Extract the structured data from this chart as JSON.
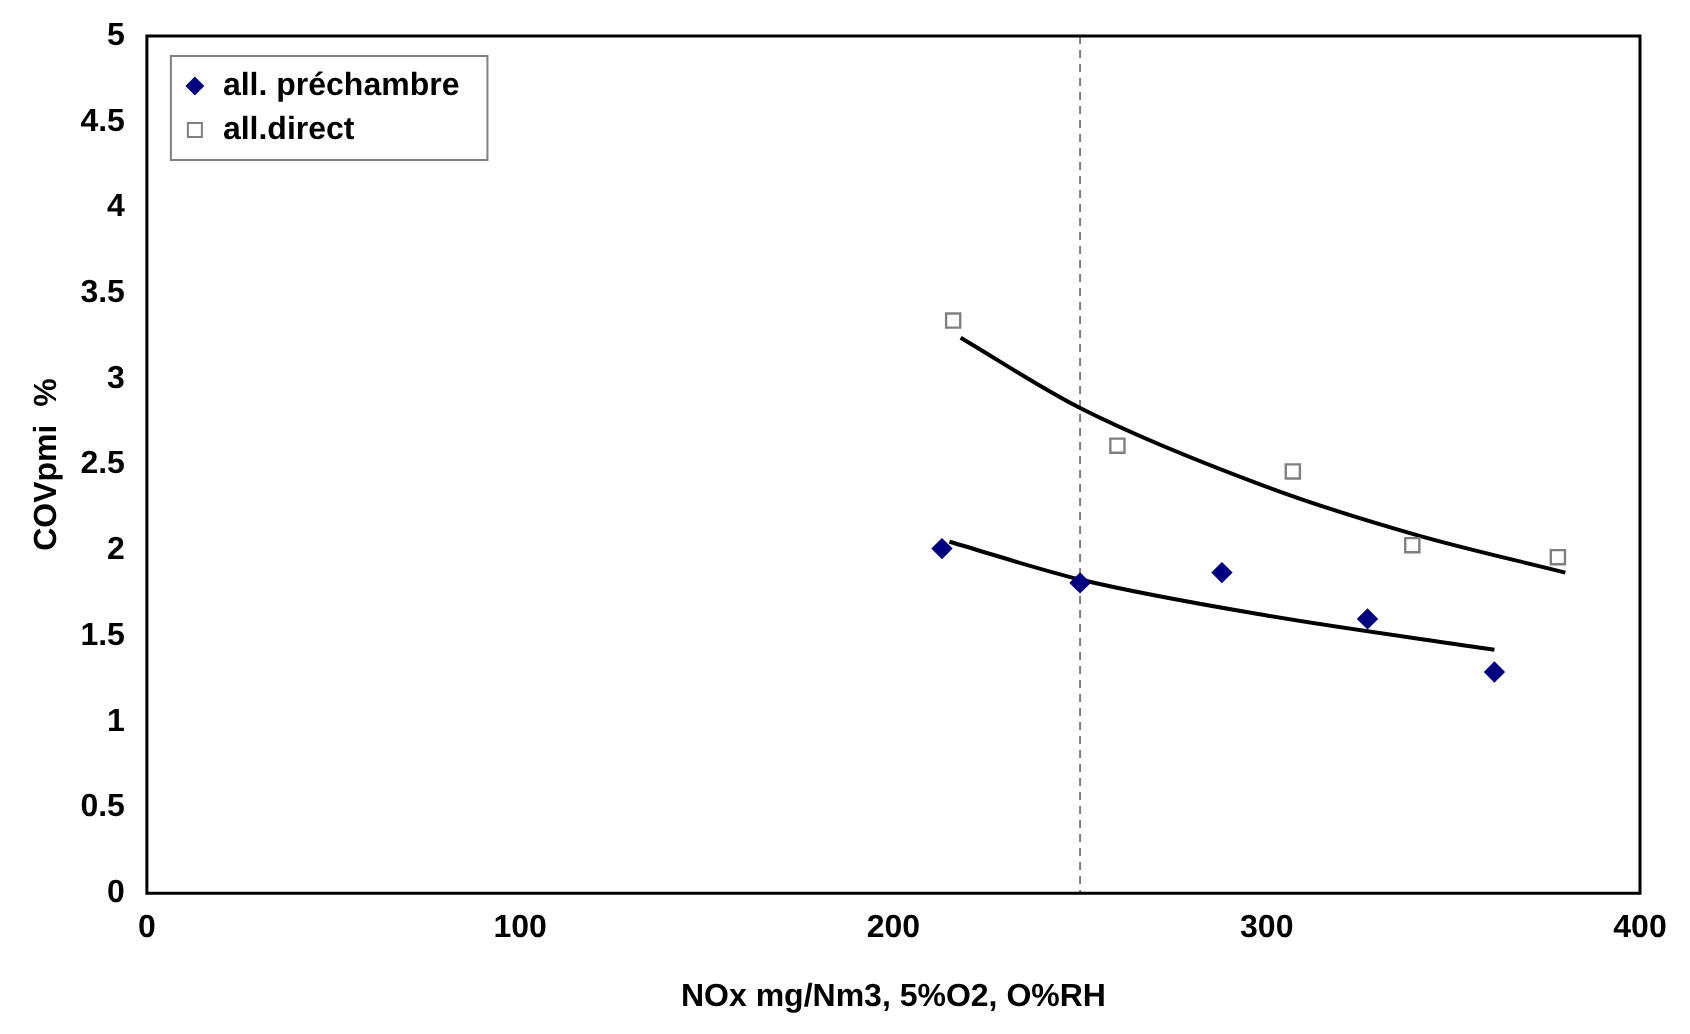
{
  "chart_data": {
    "type": "scatter",
    "xlabel": "NOx mg/Nm3, 5%O2, O%RH",
    "ylabel": "COVpmi  %",
    "xlim": [
      0,
      400
    ],
    "xticks": [
      0,
      100,
      200,
      300,
      400
    ],
    "ylim": [
      0,
      5
    ],
    "yticks": [
      0,
      0.5,
      1,
      1.5,
      2,
      2.5,
      3,
      3.5,
      4,
      4.5,
      5
    ],
    "grid": false,
    "legend": "top left",
    "series": [
      {
        "name": "all. préchambre",
        "color": "#000080",
        "marker": "diamond",
        "x": [
          213,
          250,
          288,
          327,
          361
        ],
        "values": [
          2.01,
          1.81,
          1.87,
          1.6,
          1.29
        ]
      },
      {
        "name": "all.direct",
        "color": "#808080",
        "marker": "square",
        "x": [
          216,
          260,
          307,
          339,
          378
        ],
        "values": [
          3.34,
          2.61,
          2.46,
          2.03,
          1.96
        ]
      },
      {
        "type": "line",
        "color": "#000000",
        "marker": "none",
        "x": [
          215,
          250,
          300,
          361
        ],
        "values": [
          2.05,
          1.83,
          1.62,
          1.42
        ]
      },
      {
        "type": "line",
        "color": "#000000",
        "marker": "none",
        "x": [
          218,
          250,
          300,
          340,
          380
        ],
        "values": [
          3.24,
          2.83,
          2.37,
          2.09,
          1.87
        ]
      }
    ],
    "ref_lines": [
      {
        "axis": "x",
        "value": 250,
        "color": "#808080",
        "line_style": "dashed"
      }
    ]
  }
}
